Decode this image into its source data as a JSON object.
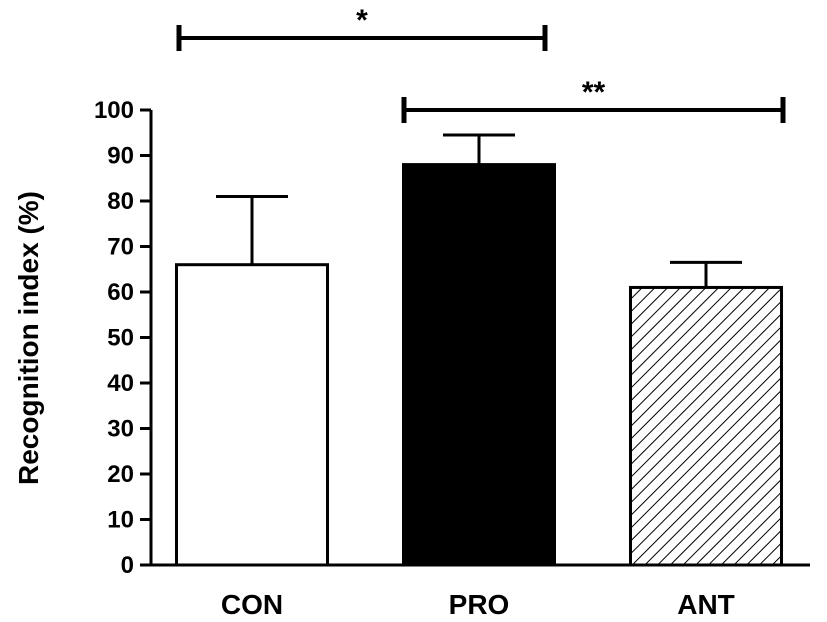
{
  "chart_data": {
    "type": "bar",
    "categories": [
      "CON",
      "PRO",
      "ANT"
    ],
    "values": [
      66,
      88,
      61
    ],
    "errors": [
      15,
      6.5,
      5.5
    ],
    "ylabel": "Recognition index (%)",
    "xlabel": "",
    "ylim": [
      0,
      100
    ],
    "yticks": [
      "0",
      "10",
      "20",
      "30",
      "40",
      "50",
      "60",
      "70",
      "80",
      "90",
      "100"
    ],
    "bar_fills": [
      "white",
      "black",
      "hatched"
    ],
    "grid": false,
    "significance": [
      {
        "from": "CON",
        "to": "PRO",
        "label": "*"
      },
      {
        "from": "PRO",
        "to": "ANT",
        "label": "**"
      }
    ]
  }
}
